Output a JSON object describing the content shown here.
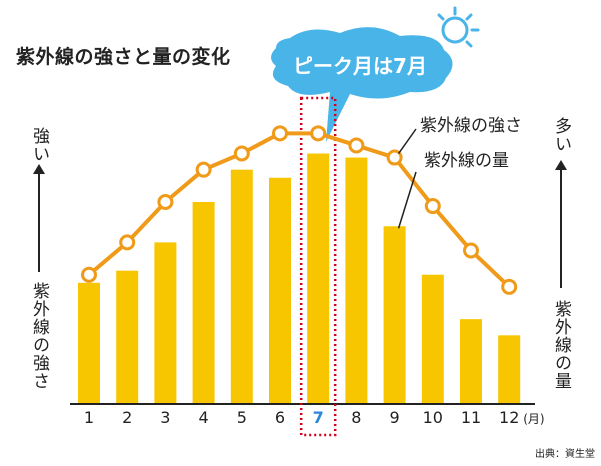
{
  "chart_data": {
    "type": "bar+line",
    "title": "紫外線の強さと量の変化",
    "categories": [
      "1",
      "2",
      "3",
      "4",
      "5",
      "6",
      "7",
      "8",
      "9",
      "10",
      "11",
      "12"
    ],
    "x_unit": "(月)",
    "series": [
      {
        "name": "紫外線の量",
        "type": "bar",
        "values": [
          30,
          33,
          40,
          50,
          58,
          56,
          62,
          61,
          44,
          32,
          21,
          17
        ]
      },
      {
        "name": "紫外線の強さ",
        "type": "line",
        "values": [
          32,
          40,
          50,
          58,
          62,
          67,
          67,
          64,
          61,
          49,
          38,
          29
        ]
      }
    ],
    "ylim": [
      0,
      100
    ],
    "highlight": {
      "category": "7",
      "label": "ピーク月は7月"
    },
    "left_axis_label_top": "強い",
    "left_axis_label_bottom": "紫外線の強さ",
    "right_axis_label_top": "多い",
    "right_axis_label_bottom": "紫外線の量",
    "source": "出典：資生堂",
    "grid": false,
    "colors": {
      "bar": "#f7c600",
      "line": "#f09a19",
      "highlight_border": "#d0021b",
      "highlight_text": "#2a86d9",
      "callout": "#49b4e7"
    }
  }
}
